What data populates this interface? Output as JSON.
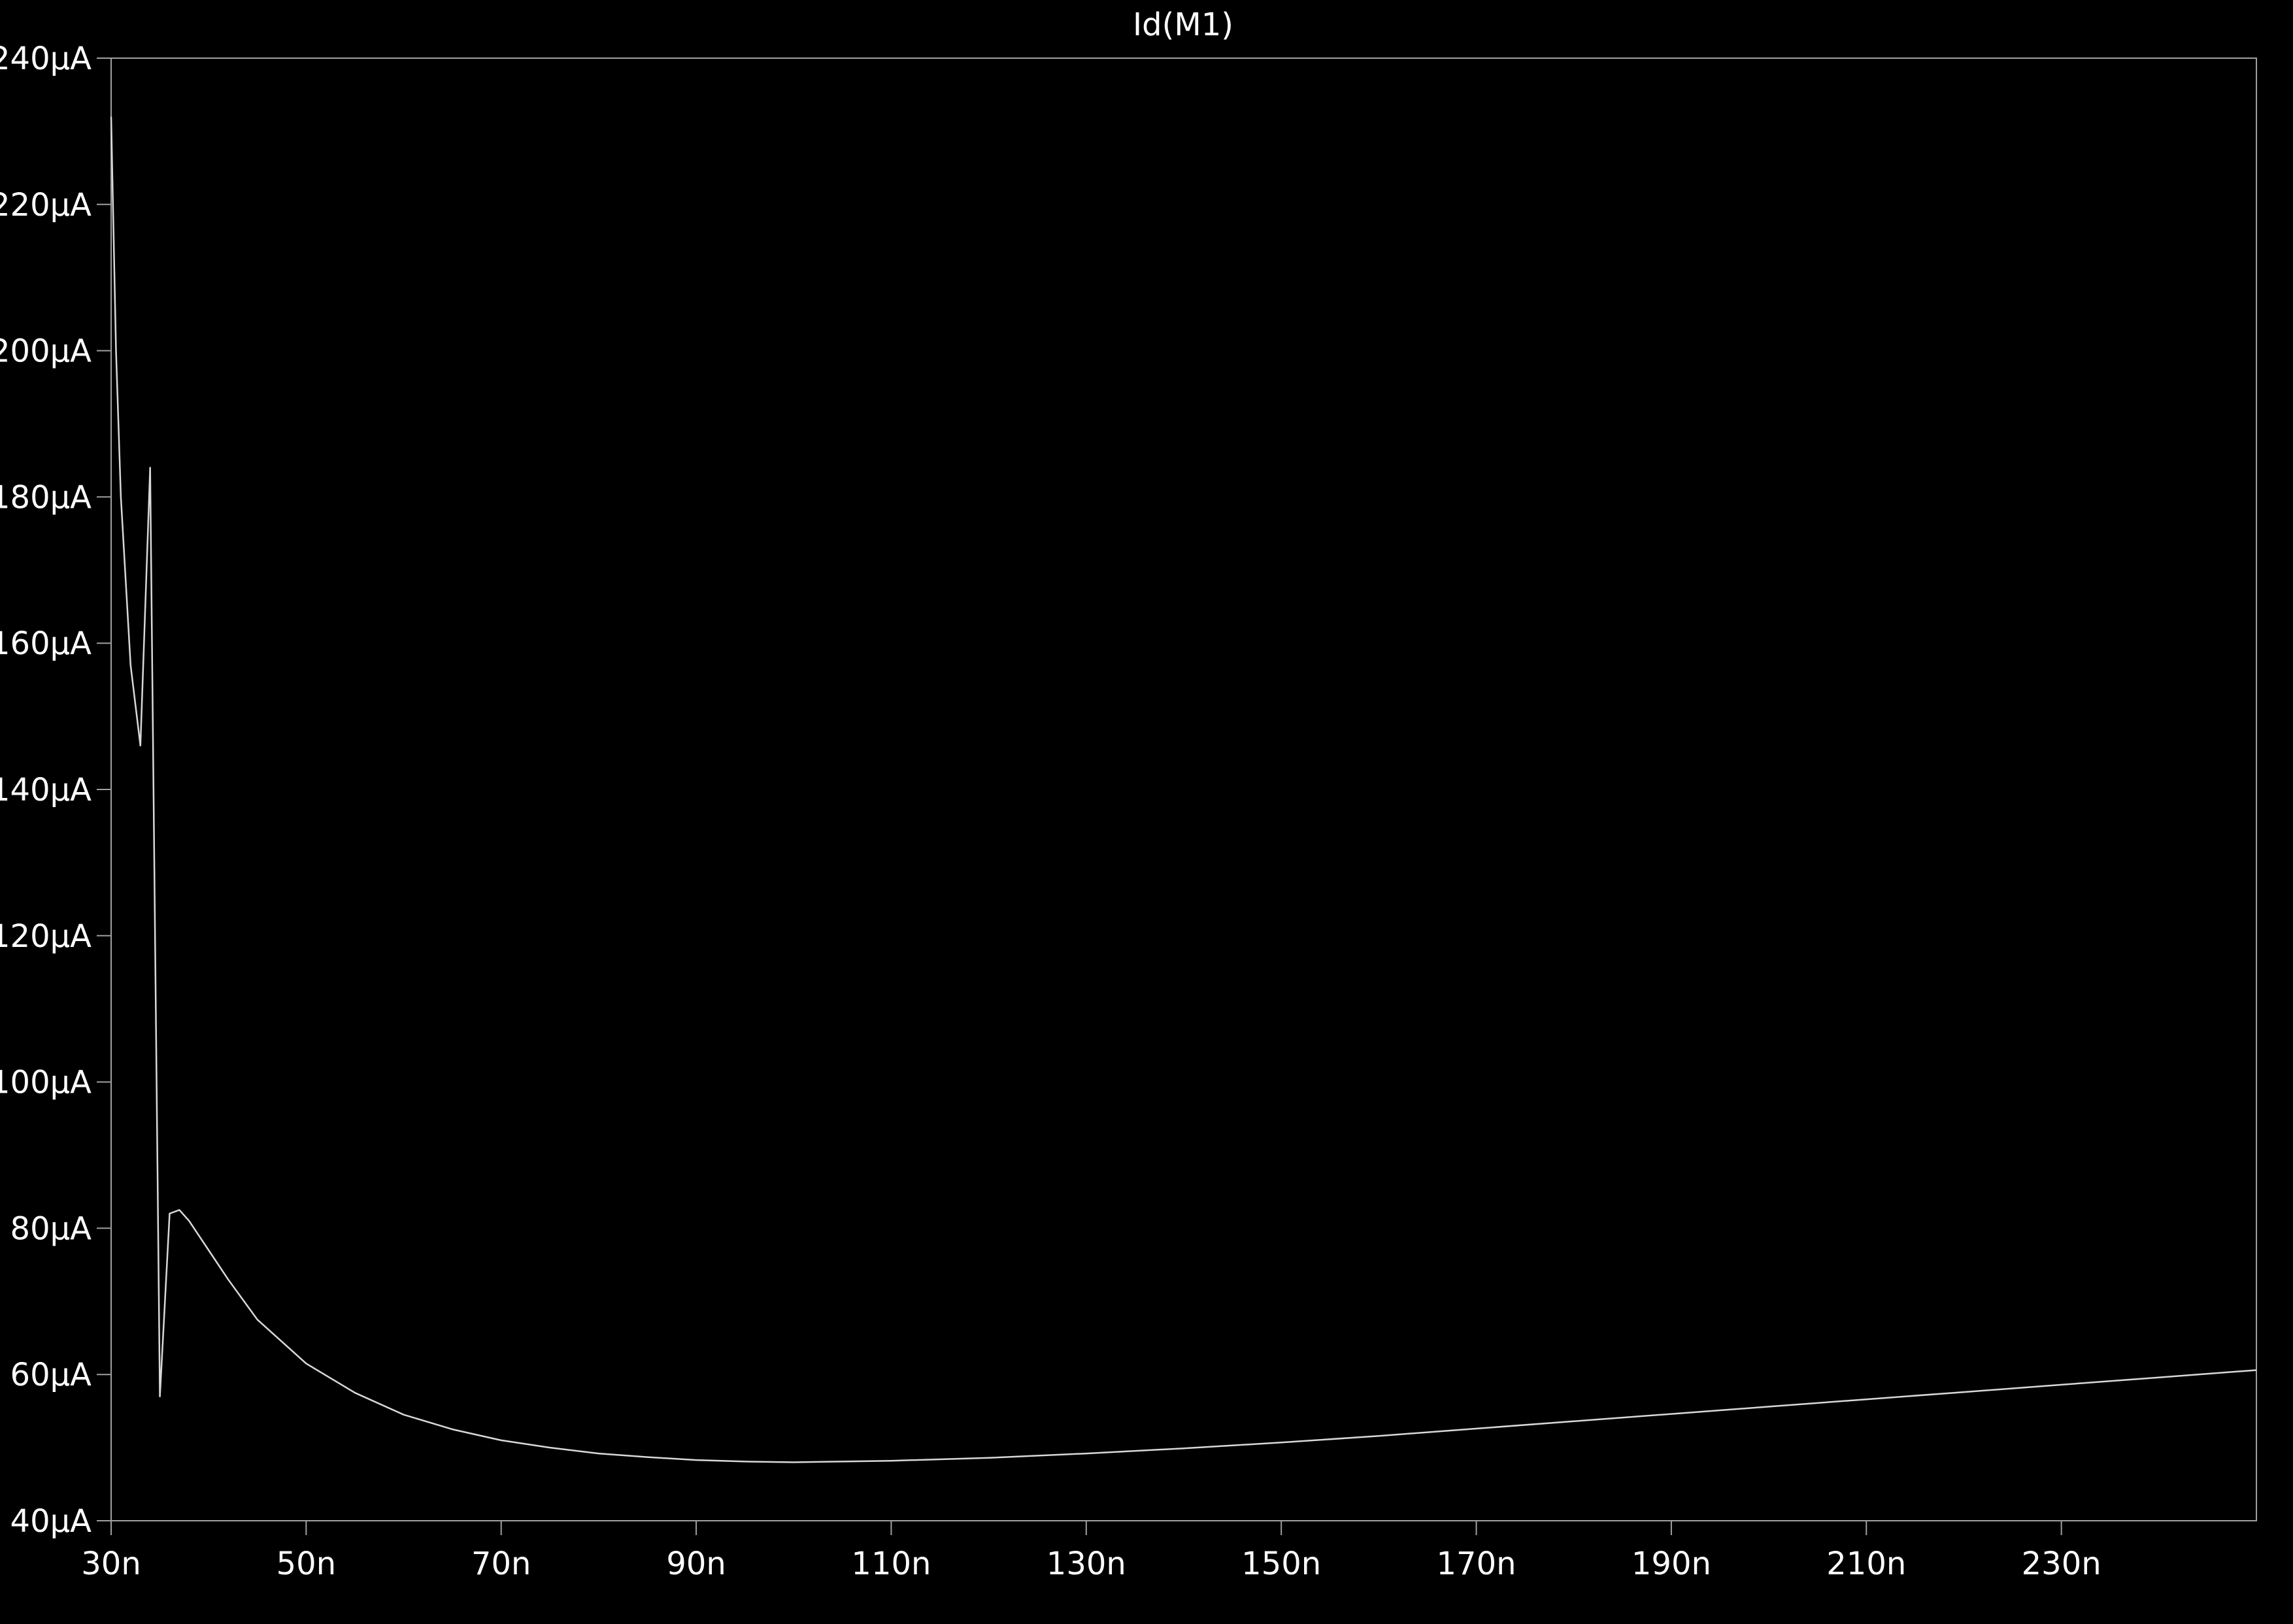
{
  "chart_data": {
    "type": "line",
    "title": "Id(M1)",
    "xlabel": "",
    "ylabel": "",
    "xlim": [
      30,
      250
    ],
    "ylim": [
      40,
      240
    ],
    "x_ticks": [
      30,
      50,
      70,
      90,
      110,
      130,
      150,
      170,
      190,
      210,
      230
    ],
    "x_tick_labels": [
      "30n",
      "50n",
      "70n",
      "90n",
      "110n",
      "130n",
      "150n",
      "170n",
      "190n",
      "210n",
      "230n"
    ],
    "y_ticks": [
      40,
      60,
      80,
      100,
      120,
      140,
      160,
      180,
      200,
      220,
      240
    ],
    "y_tick_labels": [
      "40µA",
      "60µA",
      "80µA",
      "100µA",
      "120µA",
      "140µA",
      "160µA",
      "180µA",
      "200µA",
      "220µA",
      "240µA"
    ],
    "grid": false,
    "colors": {
      "background": "#000000",
      "axis": "#a0a0a0",
      "line": "#d8d8d8",
      "text": "#ffffff"
    },
    "series": [
      {
        "values_x": [
          30,
          30.5,
          31,
          32,
          33,
          34,
          35,
          36,
          37,
          38,
          40,
          42,
          45,
          50,
          55,
          60,
          65,
          70,
          75,
          80,
          85,
          90,
          95,
          100,
          105,
          110,
          120,
          130,
          140,
          150,
          160,
          170,
          180,
          190,
          200,
          210,
          220,
          230,
          240,
          250
        ],
        "values_y": [
          232,
          200,
          180,
          157,
          146,
          184,
          57,
          82,
          82.5,
          81,
          77,
          73,
          67.5,
          61.5,
          57.5,
          54.5,
          52.5,
          51,
          50,
          49.2,
          48.7,
          48.3,
          48.1,
          48,
          48.1,
          48.2,
          48.6,
          49.2,
          49.9,
          50.7,
          51.6,
          52.6,
          53.6,
          54.6,
          55.6,
          56.6,
          57.6,
          58.6,
          59.6,
          60.6
        ]
      }
    ]
  }
}
